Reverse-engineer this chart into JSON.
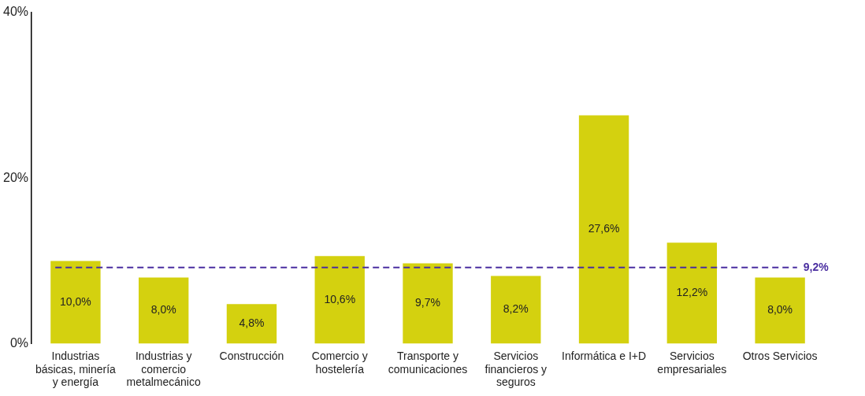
{
  "chart_data": {
    "type": "bar",
    "categories": [
      "Industrias básicas, minería y energía",
      "Industrias y comercio metalmecánico",
      "Construcción",
      "Comercio y hostelería",
      "Transporte y comunicaciones",
      "Servicios financieros y seguros",
      "Informática e I+D",
      "Servicios empresariales",
      "Otros Servicios"
    ],
    "values": [
      10.0,
      8.0,
      4.8,
      10.6,
      9.7,
      8.2,
      27.6,
      12.2,
      8.0
    ],
    "value_labels": [
      "10,0%",
      "8,0%",
      "4,8%",
      "10,6%",
      "9,7%",
      "8,2%",
      "27,6%",
      "12,2%",
      "8,0%"
    ],
    "color": "#d4d10f",
    "ylim": [
      0,
      40
    ],
    "yticks": [
      {
        "value": 0,
        "label": "0%"
      },
      {
        "value": 20,
        "label": "20%"
      },
      {
        "value": 40,
        "label": "40%"
      }
    ],
    "grid": false,
    "legend": false,
    "ref_lines": [
      {
        "axis": "y",
        "value": 9.2,
        "label": "9,2%",
        "color": "#4a2ea0",
        "line_style": "dashed"
      }
    ]
  }
}
